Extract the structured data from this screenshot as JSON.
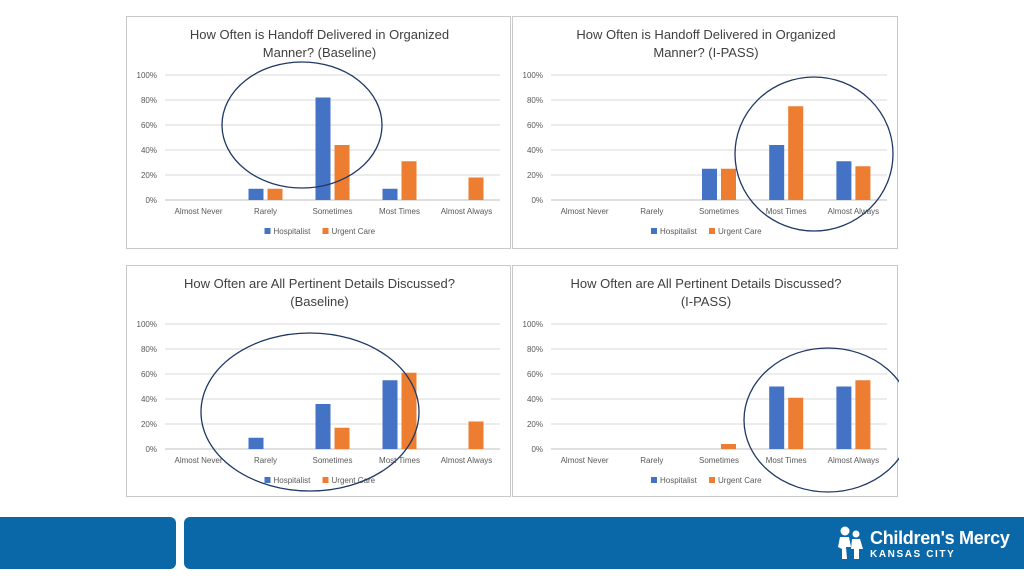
{
  "colors": {
    "series1": "#4472C4",
    "series2": "#ED7D31",
    "circle": "#1F3864",
    "footer": "#0a68a8"
  },
  "chart_data": [
    {
      "type": "bar",
      "title_lines": [
        "How Often is Handoff Delivered in Organized",
        "Manner? (Baseline)"
      ],
      "categories": [
        "Almost Never",
        "Rarely",
        "Sometimes",
        "Most Times",
        "Almost Always"
      ],
      "y_ticks": [
        "0%",
        "20%",
        "40%",
        "60%",
        "80%",
        "100%"
      ],
      "ylim": [
        0,
        100
      ],
      "series": [
        {
          "name": "Hospitalist",
          "values": [
            0,
            9,
            82,
            9,
            0
          ]
        },
        {
          "name": "Urgent Care",
          "values": [
            0,
            9,
            44,
            31,
            18
          ]
        }
      ],
      "legend": "bottom",
      "highlight": "Sometimes"
    },
    {
      "type": "bar",
      "title_lines": [
        "How Often is Handoff Delivered in Organized",
        "Manner? (I-PASS)"
      ],
      "categories": [
        "Almost Never",
        "Rarely",
        "Sometimes",
        "Most Times",
        "Almost Always"
      ],
      "y_ticks": [
        "0%",
        "20%",
        "40%",
        "60%",
        "80%",
        "100%"
      ],
      "ylim": [
        0,
        100
      ],
      "series": [
        {
          "name": "Hospitalist",
          "values": [
            0,
            0,
            25,
            44,
            31
          ]
        },
        {
          "name": "Urgent Care",
          "values": [
            0,
            0,
            25,
            75,
            27
          ]
        }
      ],
      "legend": "bottom",
      "highlight": "Most Times, Almost Always"
    },
    {
      "type": "bar",
      "title_lines": [
        "How Often are All Pertinent Details Discussed?",
        "(Baseline)"
      ],
      "categories": [
        "Almost Never",
        "Rarely",
        "Sometimes",
        "Most Times",
        "Almost Always"
      ],
      "y_ticks": [
        "0%",
        "20%",
        "40%",
        "60%",
        "80%",
        "100%"
      ],
      "ylim": [
        0,
        100
      ],
      "series": [
        {
          "name": "Hospitalist",
          "values": [
            0,
            9,
            36,
            55,
            0
          ]
        },
        {
          "name": "Urgent Care",
          "values": [
            0,
            0,
            17,
            61,
            22
          ]
        }
      ],
      "legend": "bottom",
      "highlight": "Rarely, Sometimes, Most Times"
    },
    {
      "type": "bar",
      "title_lines": [
        "How Often are All Pertinent Details Discussed?",
        "(I-PASS)"
      ],
      "categories": [
        "Almost Never",
        "Rarely",
        "Sometimes",
        "Most Times",
        "Almost Always"
      ],
      "y_ticks": [
        "0%",
        "20%",
        "40%",
        "60%",
        "80%",
        "100%"
      ],
      "ylim": [
        0,
        100
      ],
      "series": [
        {
          "name": "Hospitalist",
          "values": [
            0,
            0,
            0,
            50,
            50
          ]
        },
        {
          "name": "Urgent Care",
          "values": [
            0,
            0,
            4,
            41,
            55
          ]
        }
      ],
      "legend": "bottom",
      "highlight": "Most Times, Almost Always"
    }
  ],
  "branding": {
    "name": "Children's Mercy",
    "city": "KANSAS CITY",
    "logo_icon": "children-figure-icon"
  }
}
